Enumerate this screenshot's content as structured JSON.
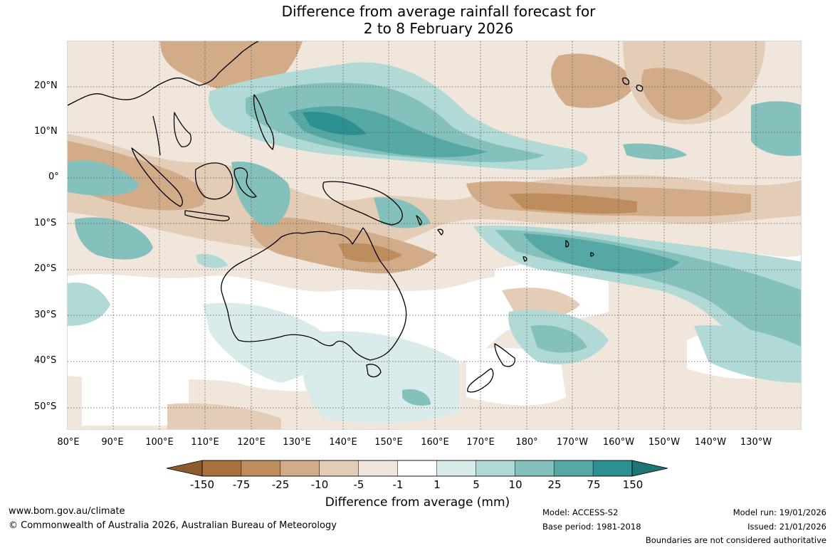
{
  "title": {
    "line1": "Difference from average rainfall forecast for",
    "line2": "2 to 8 February 2026"
  },
  "map": {
    "region": "Indo-Pacific",
    "lat_labels": [
      "20°N",
      "10°N",
      "0°",
      "10°S",
      "20°S",
      "30°S",
      "40°S",
      "50°S"
    ],
    "lon_labels": [
      "80°E",
      "90°E",
      "100°E",
      "110°E",
      "120°E",
      "130°E",
      "140°E",
      "150°E",
      "160°E",
      "170°E",
      "180°",
      "170°W",
      "160°W",
      "150°W",
      "140°W",
      "130°W"
    ],
    "gridlines": "dotted"
  },
  "colorbar": {
    "label": "Difference from average (mm)",
    "ticks": [
      "-150",
      "-75",
      "-25",
      "-10",
      "-5",
      "-1",
      "1",
      "5",
      "10",
      "25",
      "75",
      "150"
    ],
    "colors": [
      "#a8703a",
      "#be8d5e",
      "#d2ab88",
      "#e4cdb6",
      "#f1e6dc",
      "#ffffff",
      "#d9ebea",
      "#b1d9d6",
      "#84c1bd",
      "#55a8a4",
      "#2d9090"
    ],
    "extend_low_color": "#8c5a2c",
    "extend_high_color": "#1f7474"
  },
  "footer": {
    "url": "www.bom.gov.au/climate",
    "copyright": "© Commonwealth of Australia 2026, Australian Bureau of Meteorology",
    "model": "Model: ACCESS-S2",
    "base_period": "Base period: 1981-2018",
    "model_run": "Model run: 19/01/2026",
    "issued": "Issued: 21/01/2026",
    "disclaimer": "Boundaries are not considered authoritative"
  }
}
